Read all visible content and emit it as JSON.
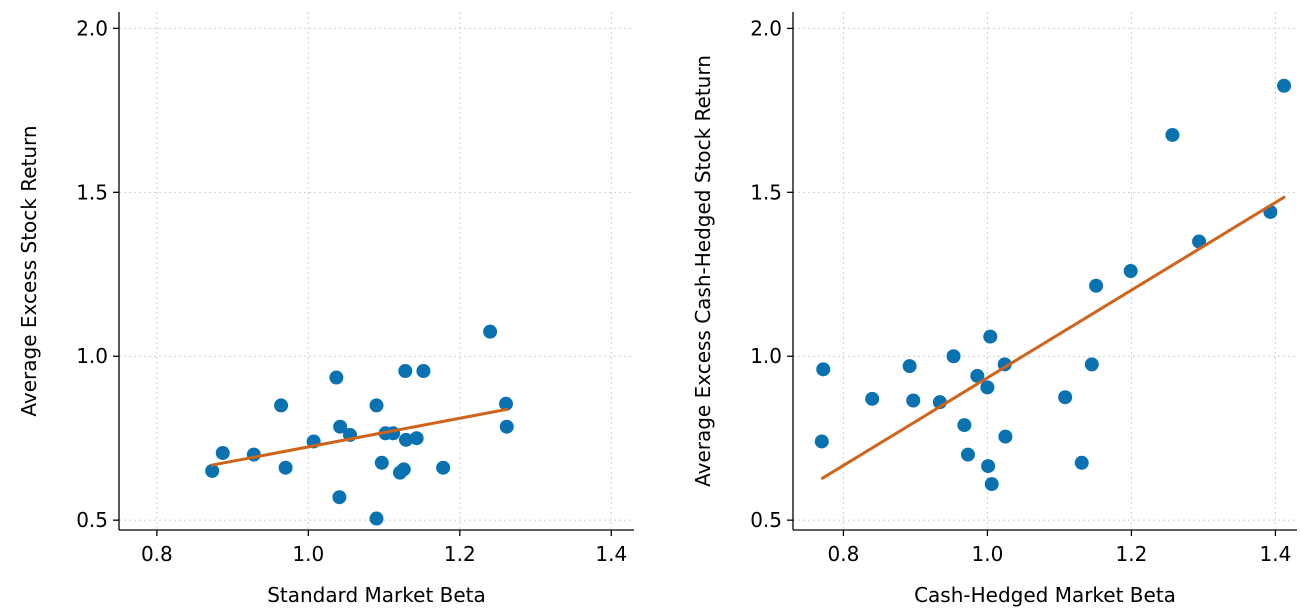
{
  "colors": {
    "points": "#0a72b0",
    "fit_line": "#d0631a",
    "grid": "#cfcfcf",
    "axis": "#000000"
  },
  "chart_data": [
    {
      "type": "scatter",
      "title": "",
      "xlabel": "Standard Market Beta",
      "ylabel": "Average Excess Stock Return",
      "xlim": [
        0.75,
        1.43
      ],
      "ylim": [
        0.47,
        2.05
      ],
      "xticks": [
        0.8,
        1.0,
        1.2,
        1.4
      ],
      "xtick_labels": [
        "0.8",
        "1.0",
        "1.2",
        "1.4"
      ],
      "yticks": [
        0.5,
        1.0,
        1.5,
        2.0
      ],
      "ytick_labels": [
        "0.5",
        "1.0",
        "1.5",
        "2.0"
      ],
      "grid": true,
      "points": [
        {
          "x": 0.873,
          "y": 0.65
        },
        {
          "x": 0.887,
          "y": 0.705
        },
        {
          "x": 0.928,
          "y": 0.7
        },
        {
          "x": 0.964,
          "y": 0.85
        },
        {
          "x": 0.97,
          "y": 0.66
        },
        {
          "x": 1.007,
          "y": 0.74
        },
        {
          "x": 1.037,
          "y": 0.935
        },
        {
          "x": 1.041,
          "y": 0.57
        },
        {
          "x": 1.042,
          "y": 0.785
        },
        {
          "x": 1.055,
          "y": 0.76
        },
        {
          "x": 1.09,
          "y": 0.85
        },
        {
          "x": 1.09,
          "y": 0.505
        },
        {
          "x": 1.097,
          "y": 0.675
        },
        {
          "x": 1.102,
          "y": 0.765
        },
        {
          "x": 1.112,
          "y": 0.765
        },
        {
          "x": 1.121,
          "y": 0.645
        },
        {
          "x": 1.126,
          "y": 0.655
        },
        {
          "x": 1.129,
          "y": 0.745
        },
        {
          "x": 1.128,
          "y": 0.955
        },
        {
          "x": 1.143,
          "y": 0.75
        },
        {
          "x": 1.152,
          "y": 0.955
        },
        {
          "x": 1.178,
          "y": 0.66
        },
        {
          "x": 1.24,
          "y": 1.075
        },
        {
          "x": 1.261,
          "y": 0.855
        },
        {
          "x": 1.262,
          "y": 0.785
        }
      ],
      "fit_line": {
        "x": [
          0.873,
          1.262
        ],
        "y": [
          0.668,
          0.838
        ]
      }
    },
    {
      "type": "scatter",
      "title": "",
      "xlabel": "Cash-Hedged Market Beta",
      "ylabel": "Average Excess Cash-Hedged Stock Return",
      "xlim": [
        0.73,
        1.43
      ],
      "ylim": [
        0.47,
        2.05
      ],
      "xticks": [
        0.8,
        1.0,
        1.2,
        1.4
      ],
      "xtick_labels": [
        "0.8",
        "1.0",
        "1.2",
        "1.4"
      ],
      "yticks": [
        0.5,
        1.0,
        1.5,
        2.0
      ],
      "ytick_labels": [
        "0.5",
        "1.0",
        "1.5",
        "2.0"
      ],
      "grid": true,
      "points": [
        {
          "x": 0.77,
          "y": 0.74
        },
        {
          "x": 0.772,
          "y": 0.96
        },
        {
          "x": 0.84,
          "y": 0.87
        },
        {
          "x": 0.892,
          "y": 0.97
        },
        {
          "x": 0.897,
          "y": 0.865
        },
        {
          "x": 0.934,
          "y": 0.86
        },
        {
          "x": 0.953,
          "y": 1.0
        },
        {
          "x": 0.968,
          "y": 0.79
        },
        {
          "x": 0.973,
          "y": 0.7
        },
        {
          "x": 0.986,
          "y": 0.94
        },
        {
          "x": 1.0,
          "y": 0.905
        },
        {
          "x": 1.001,
          "y": 0.665
        },
        {
          "x": 1.004,
          "y": 1.06
        },
        {
          "x": 1.006,
          "y": 0.61
        },
        {
          "x": 1.024,
          "y": 0.975
        },
        {
          "x": 1.025,
          "y": 0.755
        },
        {
          "x": 1.108,
          "y": 0.875
        },
        {
          "x": 1.131,
          "y": 0.675
        },
        {
          "x": 1.145,
          "y": 0.975
        },
        {
          "x": 1.151,
          "y": 1.215
        },
        {
          "x": 1.199,
          "y": 1.26
        },
        {
          "x": 1.257,
          "y": 1.675
        },
        {
          "x": 1.294,
          "y": 1.35
        },
        {
          "x": 1.393,
          "y": 1.44
        },
        {
          "x": 1.412,
          "y": 1.825
        }
      ],
      "fit_line": {
        "x": [
          0.771,
          1.412
        ],
        "y": [
          0.628,
          1.485
        ]
      }
    }
  ]
}
